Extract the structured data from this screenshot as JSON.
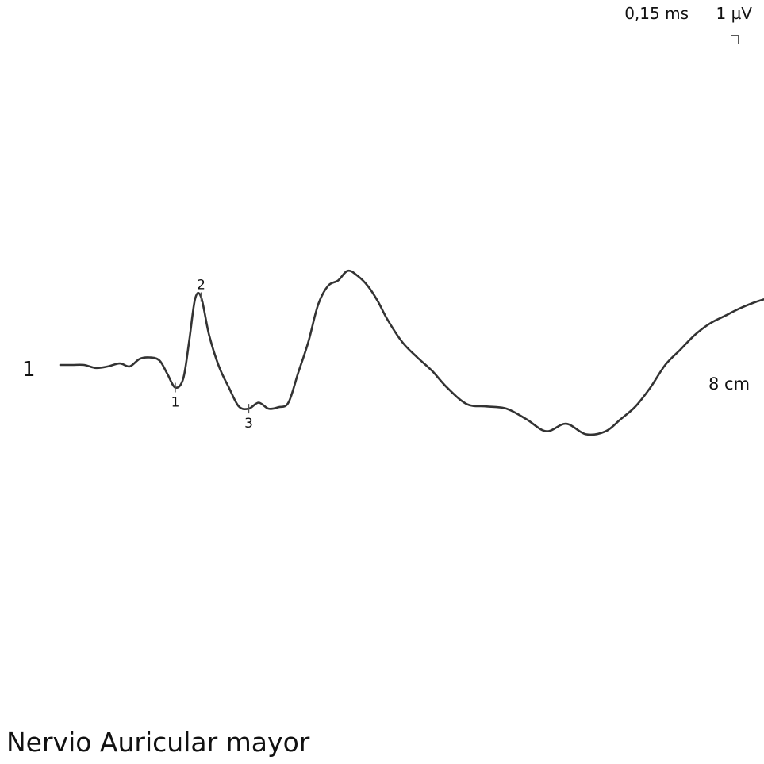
{
  "chart_data": {
    "type": "line",
    "title": "Nervio Auricular mayor",
    "scale": {
      "time": "0,15 ms",
      "amplitude": "1 µV"
    },
    "trace": {
      "label": "1",
      "distance": "8 cm",
      "x": [
        0,
        0.12,
        0.24,
        0.36,
        0.48,
        0.6,
        0.7,
        0.8,
        0.9,
        1.0,
        1.08,
        1.16,
        1.24,
        1.3,
        1.36,
        1.42,
        1.5,
        1.6,
        1.7,
        1.8,
        1.9,
        2.0,
        2.1,
        2.2,
        2.3,
        2.4,
        2.5,
        2.6,
        2.7,
        2.8,
        2.9,
        3.0,
        3.1,
        3.2,
        3.3,
        3.45,
        3.6,
        3.75,
        3.9,
        4.1,
        4.3,
        4.5,
        4.7,
        4.9,
        5.1,
        5.3,
        5.5,
        5.65,
        5.8,
        5.95,
        6.1,
        6.25,
        6.4,
        6.55,
        6.7,
        6.85,
        7.0,
        7.12
      ],
      "y": [
        0,
        0,
        0,
        -0.04,
        -0.02,
        0.02,
        -0.02,
        0.08,
        0.1,
        0.06,
        -0.12,
        -0.3,
        -0.18,
        0.32,
        0.88,
        0.9,
        0.4,
        -0.02,
        -0.3,
        -0.55,
        -0.58,
        -0.5,
        -0.58,
        -0.56,
        -0.5,
        -0.1,
        0.3,
        0.8,
        1.05,
        1.12,
        1.25,
        1.18,
        1.05,
        0.85,
        0.6,
        0.3,
        0.1,
        -0.08,
        -0.3,
        -0.52,
        -0.55,
        -0.58,
        -0.72,
        -0.88,
        -0.78,
        -0.92,
        -0.88,
        -0.72,
        -0.55,
        -0.3,
        0.0,
        0.2,
        0.4,
        0.55,
        0.65,
        0.75,
        0.83,
        0.88
      ],
      "markers": [
        {
          "label": "1",
          "x": 1.16,
          "y": -0.3
        },
        {
          "label": "2",
          "x": 1.42,
          "y": 0.9
        },
        {
          "label": "3",
          "x": 1.9,
          "y": -0.58
        }
      ]
    },
    "grid": false
  }
}
